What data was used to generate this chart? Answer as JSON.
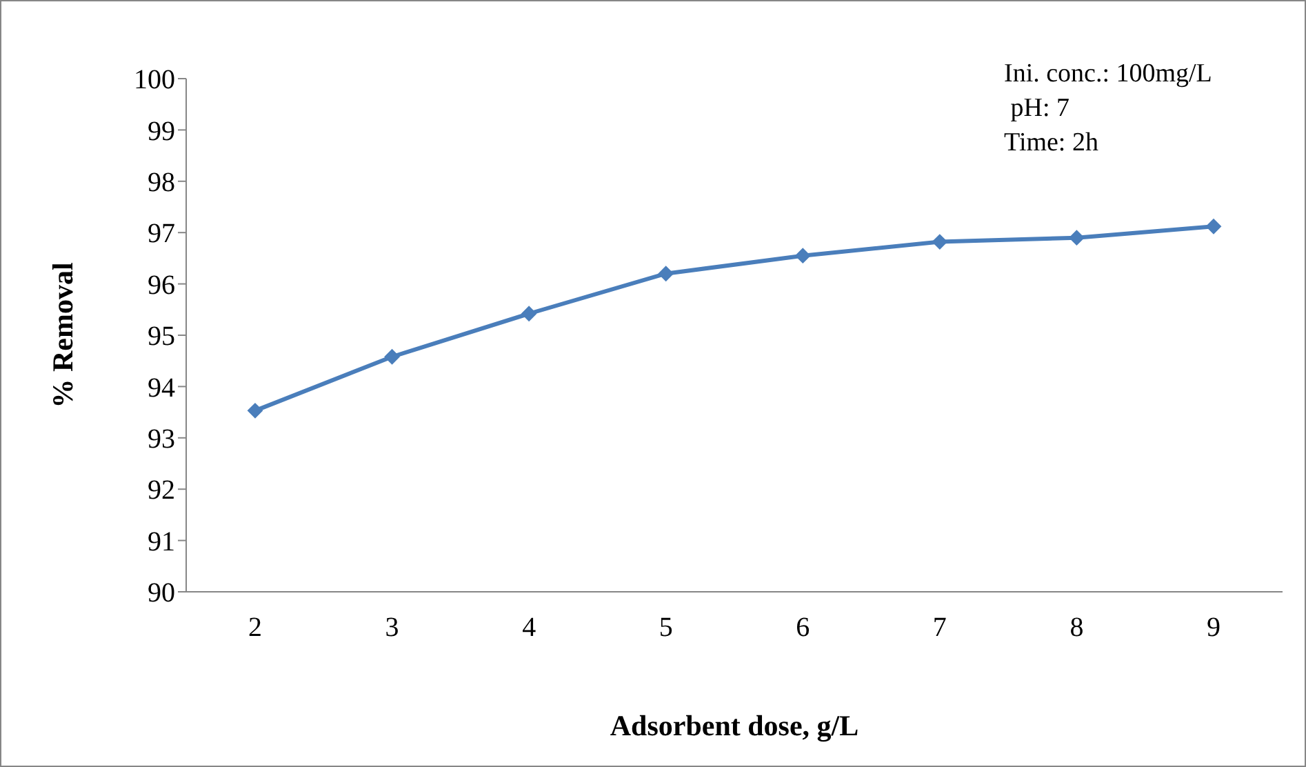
{
  "chart_data": {
    "type": "line",
    "xlabel": "Adsorbent dose, g/L",
    "ylabel": "%  Removal",
    "categories": [
      "2",
      "3",
      "4",
      "5",
      "6",
      "7",
      "8",
      "9"
    ],
    "series": [
      {
        "color": "#4a7ebb",
        "values": [
          93.53,
          94.58,
          95.42,
          96.2,
          96.55,
          96.82,
          96.9,
          97.12
        ]
      }
    ],
    "ylim": [
      90,
      100
    ],
    "yticks": [
      90,
      91,
      92,
      93,
      94,
      95,
      96,
      97,
      98,
      99,
      100
    ],
    "grid": false,
    "legend": false,
    "marker": "diamond",
    "line_style": "solid",
    "annotations": [
      "Ini. conc.: 100mg/L",
      " pH: 7",
      "Time: 2h"
    ]
  }
}
